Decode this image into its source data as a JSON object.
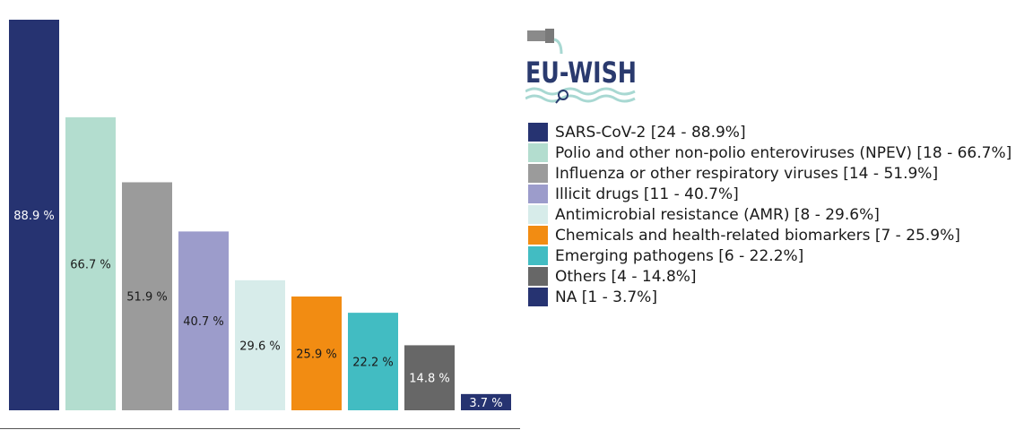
{
  "chart_data": {
    "type": "bar",
    "categories": [
      "SARS-CoV-2",
      "Polio and other non-polio enteroviruses (NPEV)",
      "Influenza or other respiratory viruses",
      "Illicit drugs",
      "Antimicrobial resistance (AMR)",
      "Chemicals and health-related biomarkers",
      "Emerging pathogens",
      "Others",
      "NA"
    ],
    "values": [
      88.9,
      66.7,
      51.9,
      40.7,
      29.6,
      25.9,
      22.2,
      14.8,
      3.7
    ],
    "data_labels": [
      "88.9 %",
      "66.7 %",
      "51.9 %",
      "40.7 %",
      "29.6 %",
      "25.9 %",
      "22.2 %",
      "14.8 %",
      "3.7 %"
    ],
    "colors": [
      "#263371",
      "#b3ddcf",
      "#9b9b9b",
      "#9c9ccb",
      "#d7ecea",
      "#f28c12",
      "#42bcc2",
      "#676767",
      "#263371"
    ],
    "label_colors": [
      "#ffffff",
      "#1a1a1a",
      "#1a1a1a",
      "#1a1a1a",
      "#1a1a1a",
      "#1a1a1a",
      "#1a1a1a",
      "#ffffff",
      "#ffffff"
    ],
    "legend": [
      "SARS-CoV-2 [24 - 88.9%]",
      "Polio and other non-polio enteroviruses (NPEV) [18 - 66.7%]",
      "Influenza or other respiratory viruses [14 - 51.9%]",
      "Illicit drugs [11 - 40.7%]",
      "Antimicrobial resistance (AMR) [8 - 29.6%]",
      "Chemicals and health-related biomarkers [7 - 25.9%]",
      "Emerging pathogens [6 - 22.2%]",
      "Others [4 - 14.8%]",
      "NA [1 - 3.7%]"
    ],
    "legend_placement": "right",
    "ylim": [
      0,
      88.9
    ],
    "grid": false,
    "title": "",
    "xlabel": "",
    "ylabel": ""
  },
  "logo": {
    "text": "EU-WISH",
    "colors": {
      "text": "#2a3a6e",
      "waves": "#a8d8d2",
      "pipe": "#8a8a8a"
    }
  }
}
